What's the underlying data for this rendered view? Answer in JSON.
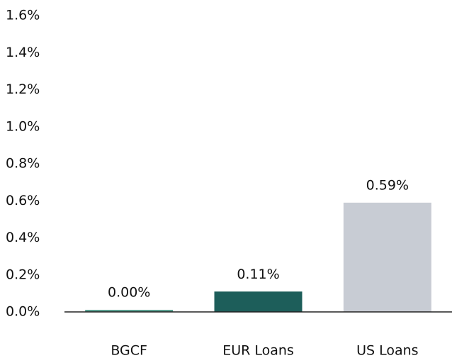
{
  "chart_data": {
    "type": "bar",
    "categories": [
      "BGCF",
      "EUR Loans",
      "US Loans"
    ],
    "values": [
      0,
      0.11,
      0.59
    ],
    "value_labels": [
      "0.00%",
      "0.11%",
      "0.59%"
    ],
    "colors": [
      "#5a9e8f",
      "#1d5e5a",
      "#c8ccd4"
    ],
    "ylim": [
      0,
      1.6
    ],
    "yticks": [
      {
        "value": 0,
        "label": "0.0%"
      },
      {
        "value": 0.2,
        "label": "0.2%"
      },
      {
        "value": 0.4,
        "label": "0.4%"
      },
      {
        "value": 0.6,
        "label": "0.6%"
      },
      {
        "value": 0.8,
        "label": "0.8%"
      },
      {
        "value": 1.0,
        "label": "1.0%"
      },
      {
        "value": 1.2,
        "label": "1.2%"
      },
      {
        "value": 1.4,
        "label": "1.4%"
      },
      {
        "value": 1.6,
        "label": "1.6%"
      }
    ],
    "grid": false
  }
}
